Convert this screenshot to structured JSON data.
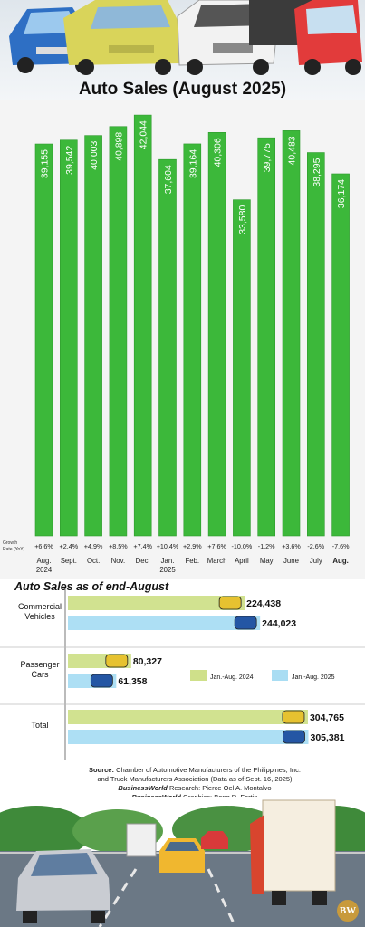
{
  "title": "Auto Sales (August 2025)",
  "chart_data": [
    {
      "type": "bar",
      "title": "Auto Sales (August 2025)",
      "row_label": "Growth Rate (YoY)",
      "categories": [
        "Aug.\n2024",
        "Sept.",
        "Oct.",
        "Nov.",
        "Dec.",
        "Jan.\n2025",
        "Feb.",
        "March",
        "April",
        "May",
        "June",
        "July",
        "Aug."
      ],
      "values": [
        39155,
        39542,
        40003,
        40898,
        42044,
        37604,
        39164,
        40306,
        33580,
        39775,
        40483,
        38295,
        36174
      ],
      "value_labels": [
        "39,155",
        "39,542",
        "40,003",
        "40,898",
        "42,044",
        "37,604",
        "39,164",
        "40,306",
        "33,580",
        "39,775",
        "40,483",
        "38,295",
        "36,174"
      ],
      "growth": [
        "+6.6%",
        "+2.4%",
        "+4.9%",
        "+8.5%",
        "+7.4%",
        "+10.4%",
        "+2.9%",
        "+7.6%",
        "-10.0%",
        "-1.2%",
        "+3.6%",
        "-2.6%",
        "-7.6%"
      ],
      "colors": {
        "bar": "#3cb83a",
        "bar_edge": "#2e9a2d"
      }
    },
    {
      "type": "bar",
      "orientation": "horizontal",
      "title": "Auto Sales as of end-August",
      "categories": [
        "Commercial\nVehicles",
        "Passenger\nCars",
        "Total"
      ],
      "series": [
        {
          "name": "Jan.-Aug. 2024",
          "values": [
            224438,
            80327,
            304765
          ],
          "labels": [
            "224,438",
            "80,327",
            "304,765"
          ],
          "color": "#cfe08a"
        },
        {
          "name": "Jan.-Aug. 2025",
          "values": [
            244023,
            61358,
            305381
          ],
          "labels": [
            "244,023",
            "61,358",
            "305,381"
          ],
          "color": "#a9ddf3"
        }
      ]
    }
  ],
  "source": {
    "line1_label": "Source:",
    "line1": "Chamber of Automotive Manufacturers of the Philippines, Inc.",
    "line2": "and Truck Manufacturers Association (Data as of Sept. 16, 2025)",
    "research_label": "BusinessWorld",
    "research_suffix": "Research:",
    "research_name": "Pierce Oel A. Montalvo",
    "graphics_label": "BusinessWorld",
    "graphics_suffix": "Graphics:",
    "graphics_name": "Bong R. Fortin"
  },
  "logo": "BW"
}
